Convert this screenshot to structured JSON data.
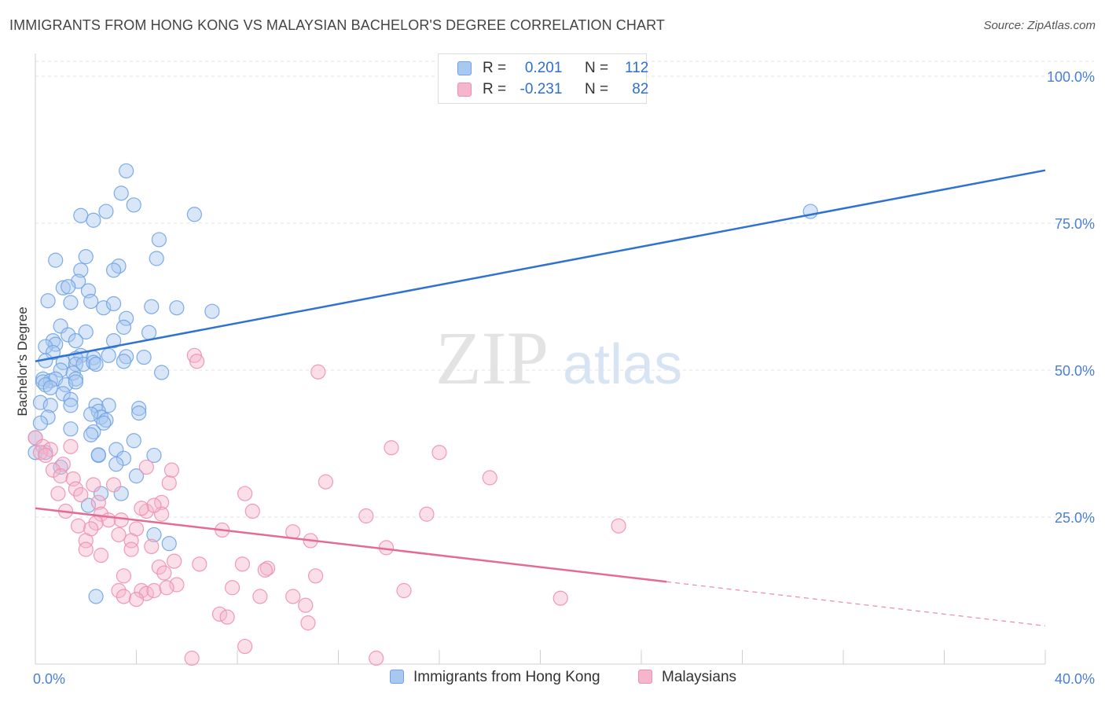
{
  "title": "IMMIGRANTS FROM HONG KONG VS MALAYSIAN BACHELOR'S DEGREE CORRELATION CHART",
  "source": "Source: ZipAtlas.com",
  "watermark": {
    "zip": "ZIP",
    "atlas": "atlas"
  },
  "legend": {
    "rows": [
      {
        "r_label": "R =",
        "r_value": "0.201",
        "n_label": "N =",
        "n_value": "112",
        "color": "#a9c8f0"
      },
      {
        "r_label": "R =",
        "r_value": "-0.231",
        "n_label": "N =",
        "n_value": "82",
        "color": "#f5b6cb"
      }
    ]
  },
  "chart_data": {
    "type": "scatter",
    "title": "IMMIGRANTS FROM HONG KONG VS MALAYSIAN BACHELOR'S DEGREE CORRELATION CHART",
    "xlabel": "",
    "ylabel": "Bachelor's Degree",
    "xlim": [
      0,
      40
    ],
    "ylim": [
      0,
      100
    ],
    "x_tick_labels": [
      "0.0%",
      "40.0%"
    ],
    "y_ticks": [
      25,
      50,
      75,
      100
    ],
    "y_tick_labels": [
      "25.0%",
      "50.0%",
      "75.0%",
      "100.0%"
    ],
    "grid": true,
    "legend_position": "top-center",
    "series": [
      {
        "name": "Immigrants from Hong Kong",
        "color": "#6fa3e6",
        "fill": "#a9c8f0",
        "trend": {
          "x": [
            0,
            40
          ],
          "y": [
            51.5,
            84.0
          ],
          "color": "#2f72d1"
        },
        "points": [
          [
            3.6,
            83.9
          ],
          [
            3.4,
            80.1
          ],
          [
            3.9,
            78.1
          ],
          [
            1.8,
            76.3
          ],
          [
            2.8,
            77.0
          ],
          [
            2.3,
            75.5
          ],
          [
            6.3,
            76.5
          ],
          [
            3.3,
            67.7
          ],
          [
            3.1,
            67.0
          ],
          [
            4.9,
            72.2
          ],
          [
            4.8,
            69.0
          ],
          [
            0.8,
            68.7
          ],
          [
            2.0,
            69.3
          ],
          [
            1.8,
            67.0
          ],
          [
            1.7,
            65.1
          ],
          [
            1.1,
            64.0
          ],
          [
            2.1,
            63.5
          ],
          [
            1.3,
            64.2
          ],
          [
            0.5,
            61.8
          ],
          [
            2.7,
            60.6
          ],
          [
            3.1,
            61.3
          ],
          [
            2.2,
            61.7
          ],
          [
            1.4,
            61.5
          ],
          [
            4.6,
            60.8
          ],
          [
            5.6,
            60.6
          ],
          [
            7.0,
            60.0
          ],
          [
            3.6,
            58.8
          ],
          [
            1.0,
            57.5
          ],
          [
            2.0,
            56.5
          ],
          [
            3.5,
            57.3
          ],
          [
            4.5,
            56.4
          ],
          [
            1.3,
            56.0
          ],
          [
            0.7,
            55.0
          ],
          [
            1.6,
            55.0
          ],
          [
            3.1,
            55.0
          ],
          [
            0.8,
            54.4
          ],
          [
            0.4,
            54.0
          ],
          [
            0.7,
            53.0
          ],
          [
            1.8,
            52.5
          ],
          [
            2.9,
            52.5
          ],
          [
            2.3,
            52.1
          ],
          [
            3.6,
            52.3
          ],
          [
            1.6,
            52.0
          ],
          [
            0.4,
            51.6
          ],
          [
            1.1,
            51.3
          ],
          [
            1.6,
            51.0
          ],
          [
            1.9,
            51.0
          ],
          [
            2.3,
            51.3
          ],
          [
            3.5,
            51.5
          ],
          [
            4.3,
            52.2
          ],
          [
            2.4,
            51.0
          ],
          [
            1.0,
            50.0
          ],
          [
            1.5,
            49.5
          ],
          [
            5.0,
            49.6
          ],
          [
            0.3,
            48.5
          ],
          [
            0.6,
            48.2
          ],
          [
            0.8,
            48.5
          ],
          [
            1.6,
            48.5
          ],
          [
            0.3,
            48.0
          ],
          [
            0.4,
            47.5
          ],
          [
            0.6,
            47.0
          ],
          [
            1.2,
            47.5
          ],
          [
            1.6,
            48.0
          ],
          [
            1.1,
            46.0
          ],
          [
            1.4,
            45.0
          ],
          [
            0.2,
            44.5
          ],
          [
            1.4,
            44.0
          ],
          [
            2.9,
            44.0
          ],
          [
            2.4,
            44.0
          ],
          [
            0.6,
            44.0
          ],
          [
            4.1,
            43.5
          ],
          [
            2.5,
            43.0
          ],
          [
            2.6,
            42.0
          ],
          [
            4.1,
            42.7
          ],
          [
            2.2,
            42.5
          ],
          [
            0.5,
            42.0
          ],
          [
            2.8,
            41.5
          ],
          [
            2.7,
            41.0
          ],
          [
            0.2,
            41.0
          ],
          [
            1.4,
            40.0
          ],
          [
            2.3,
            39.5
          ],
          [
            2.2,
            39.0
          ],
          [
            3.9,
            38.0
          ],
          [
            0.0,
            38.5
          ],
          [
            0.0,
            36.0
          ],
          [
            0.4,
            36.0
          ],
          [
            2.5,
            35.5
          ],
          [
            2.5,
            35.6
          ],
          [
            3.2,
            36.5
          ],
          [
            4.7,
            35.5
          ],
          [
            3.5,
            35.0
          ],
          [
            3.2,
            34.0
          ],
          [
            1.0,
            33.5
          ],
          [
            4.0,
            32.0
          ],
          [
            2.6,
            29.0
          ],
          [
            3.4,
            29.0
          ],
          [
            2.1,
            27.0
          ],
          [
            4.7,
            22.0
          ],
          [
            5.3,
            20.5
          ],
          [
            2.4,
            11.5
          ],
          [
            30.7,
            77.0
          ]
        ]
      },
      {
        "name": "Malaysians",
        "color": "#ef8fb0",
        "fill": "#f5b6cb",
        "trend": {
          "x": [
            0,
            25
          ],
          "y": [
            26.5,
            14.0
          ],
          "color": "#e36b96",
          "extension": {
            "x": [
              25,
              40
            ],
            "y": [
              14.0,
              6.5
            ]
          }
        },
        "points": [
          [
            0.0,
            38.5
          ],
          [
            0.3,
            37.0
          ],
          [
            0.6,
            36.5
          ],
          [
            0.2,
            36.0
          ],
          [
            0.4,
            35.5
          ],
          [
            1.4,
            37.0
          ],
          [
            1.1,
            34.0
          ],
          [
            0.7,
            33.0
          ],
          [
            1.0,
            32.0
          ],
          [
            1.5,
            31.5
          ],
          [
            2.3,
            30.5
          ],
          [
            3.1,
            30.5
          ],
          [
            1.6,
            29.8
          ],
          [
            0.9,
            29.0
          ],
          [
            1.8,
            28.8
          ],
          [
            2.5,
            27.5
          ],
          [
            4.4,
            26.0
          ],
          [
            5.0,
            27.5
          ],
          [
            1.2,
            26.0
          ],
          [
            2.6,
            25.5
          ],
          [
            2.9,
            24.5
          ],
          [
            2.4,
            24.0
          ],
          [
            3.4,
            24.5
          ],
          [
            1.7,
            23.5
          ],
          [
            2.2,
            23.0
          ],
          [
            4.0,
            23.0
          ],
          [
            3.3,
            22.0
          ],
          [
            2.0,
            21.0
          ],
          [
            3.8,
            21.0
          ],
          [
            2.0,
            19.5
          ],
          [
            2.6,
            18.5
          ],
          [
            3.8,
            19.5
          ],
          [
            4.6,
            20.0
          ],
          [
            5.0,
            25.5
          ],
          [
            4.7,
            27.0
          ],
          [
            5.3,
            30.8
          ],
          [
            5.4,
            33.0
          ],
          [
            4.4,
            33.5
          ],
          [
            4.2,
            26.5
          ],
          [
            6.3,
            52.5
          ],
          [
            6.4,
            51.5
          ],
          [
            11.2,
            49.7
          ],
          [
            11.5,
            31.0
          ],
          [
            14.1,
            36.8
          ],
          [
            16.0,
            36.0
          ],
          [
            18.0,
            31.7
          ],
          [
            13.1,
            25.2
          ],
          [
            15.5,
            25.5
          ],
          [
            10.2,
            22.5
          ],
          [
            10.9,
            21.0
          ],
          [
            13.9,
            19.8
          ],
          [
            7.4,
            22.8
          ],
          [
            8.3,
            29.0
          ],
          [
            8.6,
            26.0
          ],
          [
            5.5,
            17.5
          ],
          [
            6.5,
            17.0
          ],
          [
            8.2,
            17.0
          ],
          [
            9.2,
            16.3
          ],
          [
            9.1,
            16.0
          ],
          [
            4.9,
            16.5
          ],
          [
            3.5,
            15.0
          ],
          [
            11.1,
            15.0
          ],
          [
            5.1,
            15.5
          ],
          [
            5.6,
            13.5
          ],
          [
            3.3,
            12.5
          ],
          [
            4.2,
            12.5
          ],
          [
            4.4,
            12.0
          ],
          [
            4.7,
            12.5
          ],
          [
            5.2,
            13.0
          ],
          [
            7.8,
            13.0
          ],
          [
            8.9,
            11.5
          ],
          [
            10.2,
            11.5
          ],
          [
            14.6,
            12.5
          ],
          [
            3.5,
            11.5
          ],
          [
            4.0,
            11.0
          ],
          [
            10.7,
            10.0
          ],
          [
            7.3,
            8.5
          ],
          [
            7.6,
            8.0
          ],
          [
            10.8,
            7.0
          ],
          [
            8.3,
            3.0
          ],
          [
            6.2,
            1.0
          ],
          [
            13.5,
            1.0
          ],
          [
            23.1,
            23.5
          ],
          [
            20.8,
            11.2
          ]
        ]
      }
    ]
  }
}
